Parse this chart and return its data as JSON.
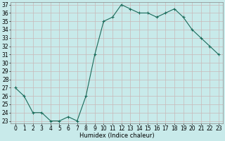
{
  "x": [
    0,
    1,
    2,
    3,
    4,
    5,
    6,
    7,
    8,
    9,
    10,
    11,
    12,
    13,
    14,
    15,
    16,
    17,
    18,
    19,
    20,
    21,
    22,
    23
  ],
  "y": [
    27,
    26,
    24,
    24,
    23,
    23,
    23.5,
    23,
    26,
    31,
    35,
    35.5,
    37,
    36.5,
    36,
    36,
    35.5,
    36,
    36.5,
    35.5,
    34,
    33,
    32,
    31
  ],
  "line_color": "#1a6b5a",
  "marker": "+",
  "marker_size": 3,
  "marker_lw": 0.8,
  "line_width": 0.8,
  "bg_color": "#c8eaea",
  "grid_color": "#c8b8b8",
  "xlabel": "Humidex (Indice chaleur)",
  "xlabel_fontsize": 6,
  "tick_fontsize": 5.5,
  "ylim": [
    23,
    37
  ],
  "xlim": [
    -0.5,
    23.5
  ],
  "yticks": [
    23,
    24,
    25,
    26,
    27,
    28,
    29,
    30,
    31,
    32,
    33,
    34,
    35,
    36,
    37
  ],
  "xticks": [
    0,
    1,
    2,
    3,
    4,
    5,
    6,
    7,
    8,
    9,
    10,
    11,
    12,
    13,
    14,
    15,
    16,
    17,
    18,
    19,
    20,
    21,
    22,
    23
  ]
}
